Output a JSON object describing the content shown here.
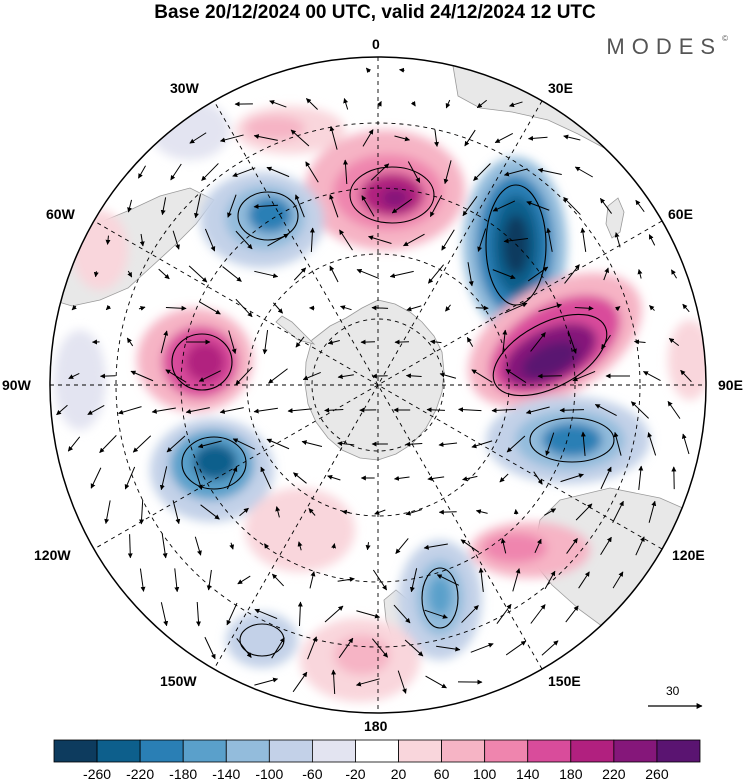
{
  "title": "Base 20/12/2024 00 UTC, valid 24/12/2024 12 UTC",
  "brand": "MODES",
  "brand_mark": "©",
  "longitude_labels": {
    "n0": "0",
    "n30e": "30E",
    "n60e": "60E",
    "n90e": "90E",
    "n120e": "120E",
    "n150e": "150E",
    "n180": "180",
    "n150w": "150W",
    "n120w": "120W",
    "n90w": "90W",
    "n60w": "60W",
    "n30w": "30W"
  },
  "reference_vector": {
    "value": "30"
  },
  "colorbar": {
    "levels": [
      "-260",
      "-220",
      "-180",
      "-140",
      "-100",
      "-60",
      "-20",
      "20",
      "60",
      "100",
      "140",
      "180",
      "220",
      "260"
    ],
    "colors": [
      "#0d3b5e",
      "#0d5f8c",
      "#2a7fb5",
      "#5aa0cb",
      "#93bcdc",
      "#c3d1e8",
      "#e3e4f1",
      "#ffffff",
      "#f9d6dc",
      "#f6b4c5",
      "#ef85ae",
      "#d94c9b",
      "#b1207f",
      "#85177a",
      "#5a1471"
    ]
  },
  "colors": {
    "land": "#e6e6e6",
    "coast": "#999999",
    "grid": "#000000"
  }
}
